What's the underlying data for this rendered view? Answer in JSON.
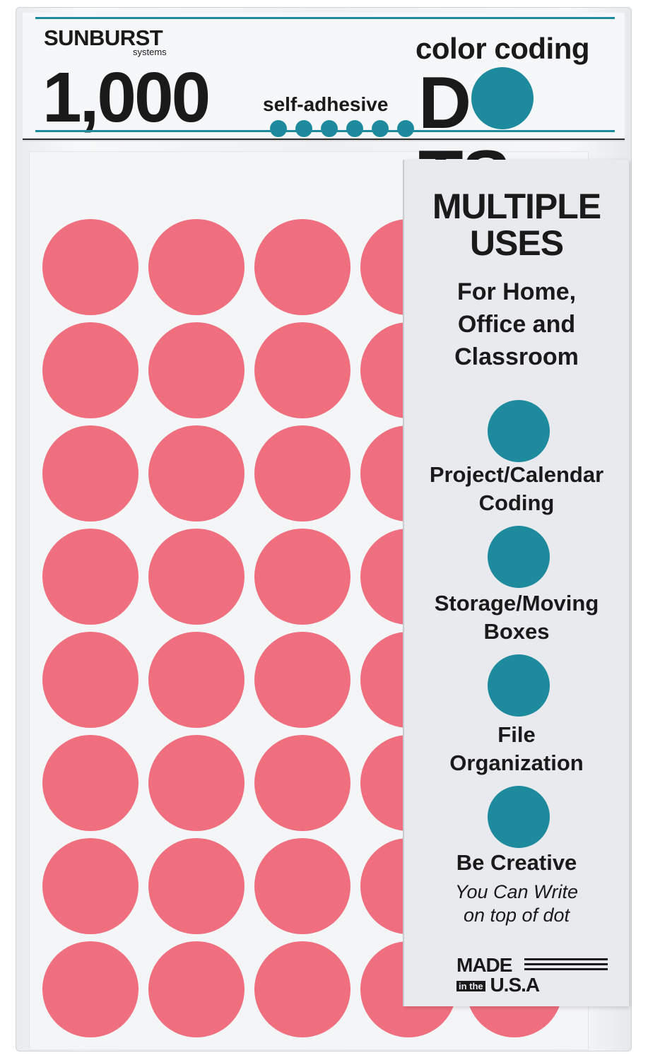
{
  "colors": {
    "teal": "#1e8a9e",
    "sticker_pink": "#f06f7e",
    "text_dark": "#1a1a1a"
  },
  "header": {
    "brand": "SUNBURST",
    "brand_sub": "systems",
    "count": "1,000",
    "adhesive": "self-adhesive",
    "tagline": "color coding",
    "dots_word_start": "D",
    "dots_word_end": "TS",
    "mini_dot_count": 6
  },
  "sheet": {
    "columns": 5,
    "rows": 8
  },
  "insert": {
    "title_line1": "MULTIPLE",
    "title_line2": "USES",
    "sub_line1": "For Home,",
    "sub_line2": "Office and",
    "sub_line3": "Classroom",
    "uses": [
      {
        "line1": "Project/Calendar",
        "line2": "Coding"
      },
      {
        "line1": "Storage/Moving",
        "line2": "Boxes"
      },
      {
        "line1": "File",
        "line2": "Organization"
      },
      {
        "line1": "Be Creative",
        "line2": ""
      }
    ],
    "note_line1": "You Can Write",
    "note_line2": "on top of dot",
    "made_top": "MADE",
    "made_in_the": "in the",
    "made_bottom": "U.S.A"
  }
}
